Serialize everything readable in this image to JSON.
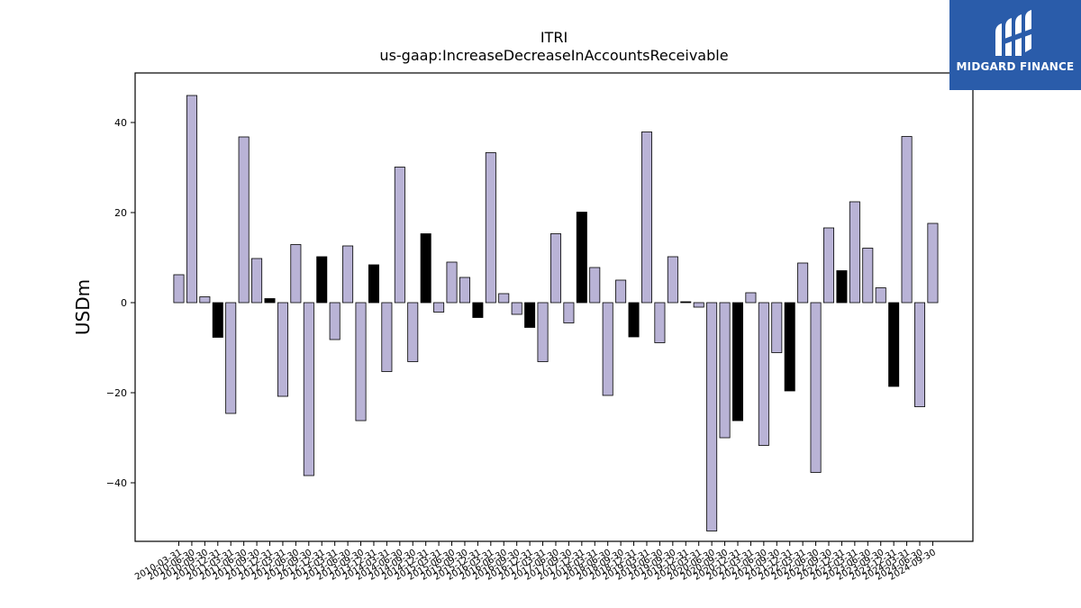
{
  "chart_data": {
    "type": "bar",
    "title": "ITRI",
    "subtitle": "us-gaap:IncreaseDecreaseInAccountsReceivable",
    "xlabel": "",
    "ylabel": "USDm",
    "ylim": [
      -53,
      51
    ],
    "yticks": [
      -40,
      -20,
      0,
      20,
      40
    ],
    "grid": false,
    "colors": {
      "default": "#b9b3d6",
      "highlight": "#000000"
    },
    "categories": [
      "2010-03-31",
      "2010-06-30",
      "2010-09-30",
      "2010-12-31",
      "2011-03-31",
      "2011-06-30",
      "2011-09-30",
      "2011-12-31",
      "2012-03-31",
      "2012-06-30",
      "2012-09-30",
      "2012-12-31",
      "2013-03-31",
      "2013-06-30",
      "2013-09-30",
      "2013-12-31",
      "2014-03-31",
      "2014-06-30",
      "2014-09-30",
      "2014-12-31",
      "2015-03-31",
      "2015-06-30",
      "2015-09-30",
      "2015-12-31",
      "2016-03-31",
      "2016-06-30",
      "2016-09-30",
      "2016-12-31",
      "2017-03-31",
      "2017-06-30",
      "2017-09-30",
      "2017-12-31",
      "2018-03-31",
      "2018-06-30",
      "2018-09-30",
      "2018-12-31",
      "2019-03-31",
      "2019-06-30",
      "2019-09-30",
      "2019-12-31",
      "2020-03-31",
      "2020-06-30",
      "2020-09-30",
      "2020-12-31",
      "2021-03-31",
      "2021-06-30",
      "2021-09-30",
      "2021-12-31",
      "2022-03-31",
      "2022-06-30",
      "2022-09-30",
      "2022-12-31",
      "2023-03-31",
      "2023-06-30",
      "2023-09-30",
      "2023-12-31",
      "2024-03-31",
      "2024-06-30",
      "2024-09-30"
    ],
    "values": [
      6.2,
      46.0,
      1.3,
      -7.7,
      -24.6,
      36.8,
      9.8,
      0.9,
      -20.8,
      12.9,
      -38.4,
      10.2,
      -8.2,
      12.6,
      -26.2,
      8.4,
      -15.3,
      30.1,
      -13.1,
      15.3,
      -2.1,
      9.0,
      5.6,
      -3.3,
      33.3,
      2.0,
      -2.6,
      -5.5,
      -13.1,
      15.3,
      -4.5,
      20.1,
      7.8,
      -20.6,
      5.0,
      -7.6,
      37.9,
      -8.9,
      10.2,
      0.2,
      -1.0,
      -50.7,
      -30.0,
      -26.2,
      2.2,
      -31.7,
      -11.1,
      -19.6,
      8.8,
      -37.7,
      16.6,
      7.1,
      22.4,
      12.1,
      3.3,
      -18.6,
      36.9,
      -23.1,
      17.6
    ],
    "highlight": [
      false,
      false,
      false,
      true,
      false,
      false,
      false,
      true,
      false,
      false,
      false,
      true,
      false,
      false,
      false,
      true,
      false,
      false,
      false,
      true,
      false,
      false,
      false,
      true,
      false,
      false,
      false,
      true,
      false,
      false,
      false,
      true,
      false,
      false,
      false,
      true,
      false,
      false,
      false,
      true,
      false,
      false,
      false,
      true,
      false,
      false,
      false,
      true,
      false,
      false,
      false,
      true,
      false,
      false,
      false,
      true,
      false,
      false,
      false
    ]
  },
  "logo": {
    "text": "MIDGARD FINANCE",
    "icon": "midgard-logo-icon",
    "background": "#2a5caa"
  }
}
